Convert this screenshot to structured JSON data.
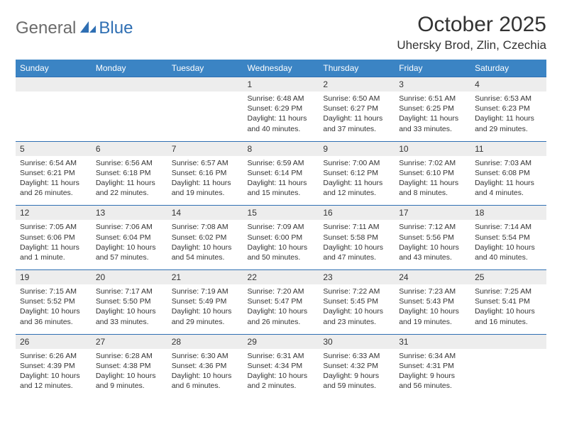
{
  "logo": {
    "part1": "General",
    "part2": "Blue"
  },
  "title": "October 2025",
  "location": "Uhersky Brod, Zlin, Czechia",
  "colors": {
    "header_bg": "#3b84c4",
    "header_text": "#ffffff",
    "row_border": "#2f6fb3",
    "num_bg": "#ededed",
    "logo_gray": "#6b6b6b",
    "logo_blue": "#2f6fb3"
  },
  "daynames": [
    "Sunday",
    "Monday",
    "Tuesday",
    "Wednesday",
    "Thursday",
    "Friday",
    "Saturday"
  ],
  "weeks": [
    [
      null,
      null,
      null,
      {
        "n": "1",
        "sr": "6:48 AM",
        "ss": "6:29 PM",
        "dl": "Daylight: 11 hours and 40 minutes."
      },
      {
        "n": "2",
        "sr": "6:50 AM",
        "ss": "6:27 PM",
        "dl": "Daylight: 11 hours and 37 minutes."
      },
      {
        "n": "3",
        "sr": "6:51 AM",
        "ss": "6:25 PM",
        "dl": "Daylight: 11 hours and 33 minutes."
      },
      {
        "n": "4",
        "sr": "6:53 AM",
        "ss": "6:23 PM",
        "dl": "Daylight: 11 hours and 29 minutes."
      }
    ],
    [
      {
        "n": "5",
        "sr": "6:54 AM",
        "ss": "6:21 PM",
        "dl": "Daylight: 11 hours and 26 minutes."
      },
      {
        "n": "6",
        "sr": "6:56 AM",
        "ss": "6:18 PM",
        "dl": "Daylight: 11 hours and 22 minutes."
      },
      {
        "n": "7",
        "sr": "6:57 AM",
        "ss": "6:16 PM",
        "dl": "Daylight: 11 hours and 19 minutes."
      },
      {
        "n": "8",
        "sr": "6:59 AM",
        "ss": "6:14 PM",
        "dl": "Daylight: 11 hours and 15 minutes."
      },
      {
        "n": "9",
        "sr": "7:00 AM",
        "ss": "6:12 PM",
        "dl": "Daylight: 11 hours and 12 minutes."
      },
      {
        "n": "10",
        "sr": "7:02 AM",
        "ss": "6:10 PM",
        "dl": "Daylight: 11 hours and 8 minutes."
      },
      {
        "n": "11",
        "sr": "7:03 AM",
        "ss": "6:08 PM",
        "dl": "Daylight: 11 hours and 4 minutes."
      }
    ],
    [
      {
        "n": "12",
        "sr": "7:05 AM",
        "ss": "6:06 PM",
        "dl": "Daylight: 11 hours and 1 minute."
      },
      {
        "n": "13",
        "sr": "7:06 AM",
        "ss": "6:04 PM",
        "dl": "Daylight: 10 hours and 57 minutes."
      },
      {
        "n": "14",
        "sr": "7:08 AM",
        "ss": "6:02 PM",
        "dl": "Daylight: 10 hours and 54 minutes."
      },
      {
        "n": "15",
        "sr": "7:09 AM",
        "ss": "6:00 PM",
        "dl": "Daylight: 10 hours and 50 minutes."
      },
      {
        "n": "16",
        "sr": "7:11 AM",
        "ss": "5:58 PM",
        "dl": "Daylight: 10 hours and 47 minutes."
      },
      {
        "n": "17",
        "sr": "7:12 AM",
        "ss": "5:56 PM",
        "dl": "Daylight: 10 hours and 43 minutes."
      },
      {
        "n": "18",
        "sr": "7:14 AM",
        "ss": "5:54 PM",
        "dl": "Daylight: 10 hours and 40 minutes."
      }
    ],
    [
      {
        "n": "19",
        "sr": "7:15 AM",
        "ss": "5:52 PM",
        "dl": "Daylight: 10 hours and 36 minutes."
      },
      {
        "n": "20",
        "sr": "7:17 AM",
        "ss": "5:50 PM",
        "dl": "Daylight: 10 hours and 33 minutes."
      },
      {
        "n": "21",
        "sr": "7:19 AM",
        "ss": "5:49 PM",
        "dl": "Daylight: 10 hours and 29 minutes."
      },
      {
        "n": "22",
        "sr": "7:20 AM",
        "ss": "5:47 PM",
        "dl": "Daylight: 10 hours and 26 minutes."
      },
      {
        "n": "23",
        "sr": "7:22 AM",
        "ss": "5:45 PM",
        "dl": "Daylight: 10 hours and 23 minutes."
      },
      {
        "n": "24",
        "sr": "7:23 AM",
        "ss": "5:43 PM",
        "dl": "Daylight: 10 hours and 19 minutes."
      },
      {
        "n": "25",
        "sr": "7:25 AM",
        "ss": "5:41 PM",
        "dl": "Daylight: 10 hours and 16 minutes."
      }
    ],
    [
      {
        "n": "26",
        "sr": "6:26 AM",
        "ss": "4:39 PM",
        "dl": "Daylight: 10 hours and 12 minutes."
      },
      {
        "n": "27",
        "sr": "6:28 AM",
        "ss": "4:38 PM",
        "dl": "Daylight: 10 hours and 9 minutes."
      },
      {
        "n": "28",
        "sr": "6:30 AM",
        "ss": "4:36 PM",
        "dl": "Daylight: 10 hours and 6 minutes."
      },
      {
        "n": "29",
        "sr": "6:31 AM",
        "ss": "4:34 PM",
        "dl": "Daylight: 10 hours and 2 minutes."
      },
      {
        "n": "30",
        "sr": "6:33 AM",
        "ss": "4:32 PM",
        "dl": "Daylight: 9 hours and 59 minutes."
      },
      {
        "n": "31",
        "sr": "6:34 AM",
        "ss": "4:31 PM",
        "dl": "Daylight: 9 hours and 56 minutes."
      },
      null
    ]
  ],
  "labels": {
    "sunrise": "Sunrise: ",
    "sunset": "Sunset: "
  }
}
